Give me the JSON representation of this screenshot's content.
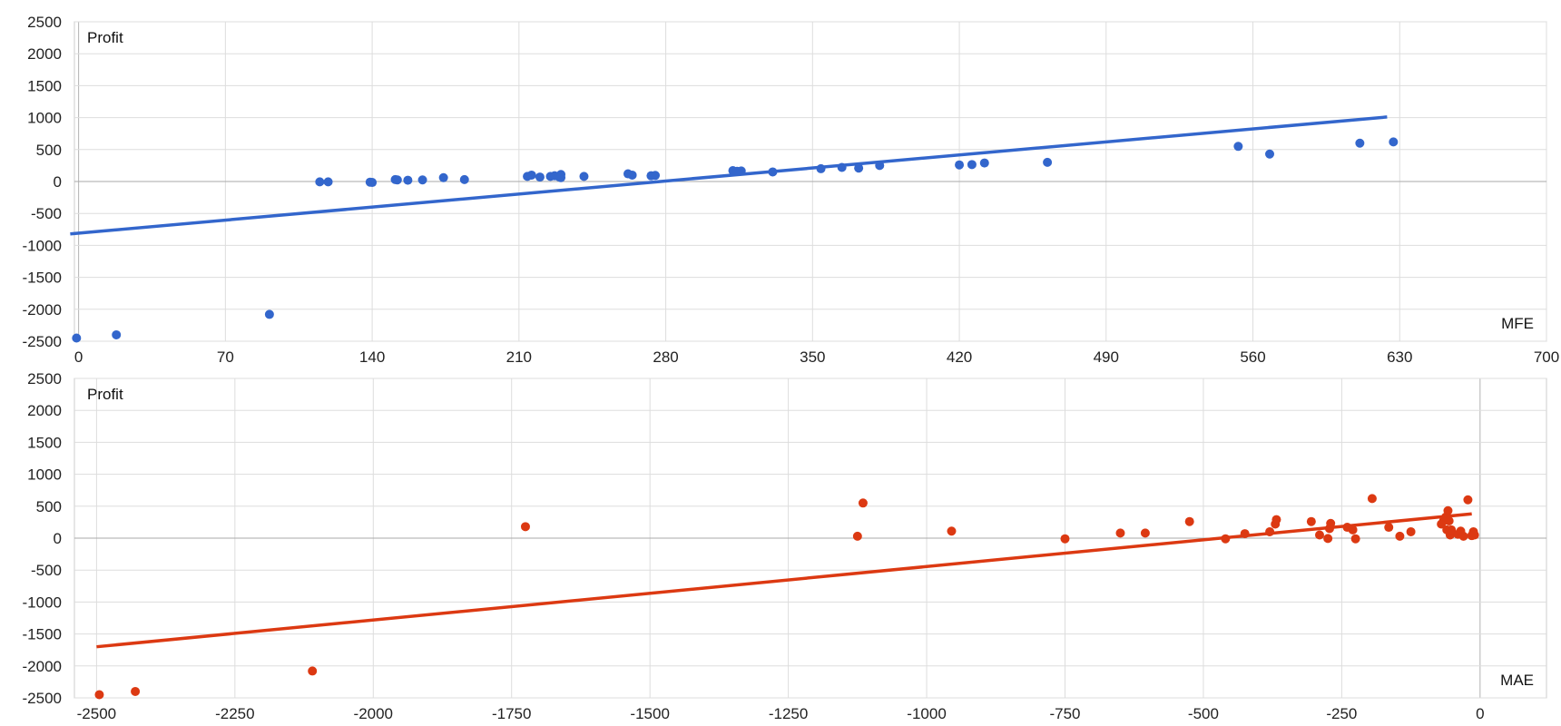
{
  "chart_data": [
    {
      "type": "scatter",
      "title": "",
      "xlabel": "MFE",
      "ylabel": "Profit",
      "xlim": [
        -2,
        700
      ],
      "ylim": [
        -2500,
        2500
      ],
      "x_ticks": [
        0,
        70,
        140,
        210,
        280,
        350,
        420,
        490,
        560,
        630,
        700
      ],
      "y_ticks": [
        2500,
        2000,
        1500,
        1000,
        500,
        0,
        -500,
        -1000,
        -1500,
        -2000,
        -2500
      ],
      "grid": true,
      "color": "#3366cc",
      "points": [
        [
          -1,
          -2450
        ],
        [
          18,
          -2400
        ],
        [
          91,
          -2080
        ],
        [
          115,
          -5
        ],
        [
          119,
          -5
        ],
        [
          139,
          -10
        ],
        [
          140,
          -15
        ],
        [
          151,
          30
        ],
        [
          152,
          25
        ],
        [
          157,
          20
        ],
        [
          164,
          25
        ],
        [
          174,
          60
        ],
        [
          184,
          30
        ],
        [
          214,
          80
        ],
        [
          216,
          100
        ],
        [
          220,
          70
        ],
        [
          225,
          80
        ],
        [
          227,
          90
        ],
        [
          229,
          75
        ],
        [
          230,
          110
        ],
        [
          230,
          60
        ],
        [
          241,
          80
        ],
        [
          262,
          120
        ],
        [
          264,
          100
        ],
        [
          273,
          90
        ],
        [
          275,
          95
        ],
        [
          312,
          170
        ],
        [
          314,
          160
        ],
        [
          316,
          165
        ],
        [
          331,
          150
        ],
        [
          354,
          200
        ],
        [
          364,
          220
        ],
        [
          372,
          210
        ],
        [
          382,
          250
        ],
        [
          420,
          260
        ],
        [
          426,
          265
        ],
        [
          432,
          290
        ],
        [
          462,
          300
        ],
        [
          553,
          550
        ],
        [
          568,
          430
        ],
        [
          611,
          600
        ],
        [
          627,
          620
        ]
      ],
      "trendline": [
        [
          -4,
          -820
        ],
        [
          624,
          1010
        ]
      ]
    },
    {
      "type": "scatter",
      "title": "",
      "xlabel": "MAE",
      "ylabel": "Profit",
      "xlim": [
        -2540,
        120
      ],
      "ylim": [
        -2500,
        2500
      ],
      "x_ticks": [
        -2500,
        -2250,
        -2000,
        -1750,
        -1500,
        -1250,
        -1000,
        -750,
        -500,
        -250,
        0
      ],
      "y_ticks": [
        2500,
        2000,
        1500,
        1000,
        500,
        0,
        -500,
        -1000,
        -1500,
        -2000,
        -2500
      ],
      "grid": true,
      "color": "#dc3912",
      "points": [
        [
          -2495,
          -2450
        ],
        [
          -2430,
          -2400
        ],
        [
          -2110,
          -2080
        ],
        [
          -1725,
          180
        ],
        [
          -1125,
          30
        ],
        [
          -1115,
          550
        ],
        [
          -955,
          110
        ],
        [
          -750,
          -10
        ],
        [
          -650,
          80
        ],
        [
          -605,
          80
        ],
        [
          -525,
          260
        ],
        [
          -460,
          -10
        ],
        [
          -425,
          70
        ],
        [
          -380,
          100
        ],
        [
          -370,
          220
        ],
        [
          -368,
          290
        ],
        [
          -305,
          260
        ],
        [
          -290,
          50
        ],
        [
          -275,
          -5
        ],
        [
          -272,
          150
        ],
        [
          -270,
          230
        ],
        [
          -240,
          170
        ],
        [
          -230,
          130
        ],
        [
          -225,
          -10
        ],
        [
          -195,
          620
        ],
        [
          -165,
          170
        ],
        [
          -145,
          30
        ],
        [
          -125,
          100
        ],
        [
          -70,
          220
        ],
        [
          -66,
          270
        ],
        [
          -62,
          330
        ],
        [
          -60,
          130
        ],
        [
          -58,
          430
        ],
        [
          -56,
          270
        ],
        [
          -54,
          50
        ],
        [
          -52,
          130
        ],
        [
          -40,
          60
        ],
        [
          -35,
          110
        ],
        [
          -30,
          30
        ],
        [
          -22,
          600
        ],
        [
          -15,
          40
        ],
        [
          -12,
          100
        ],
        [
          -10,
          50
        ]
      ],
      "trendline": [
        [
          -2500,
          -1700
        ],
        [
          -15,
          380
        ]
      ]
    }
  ]
}
